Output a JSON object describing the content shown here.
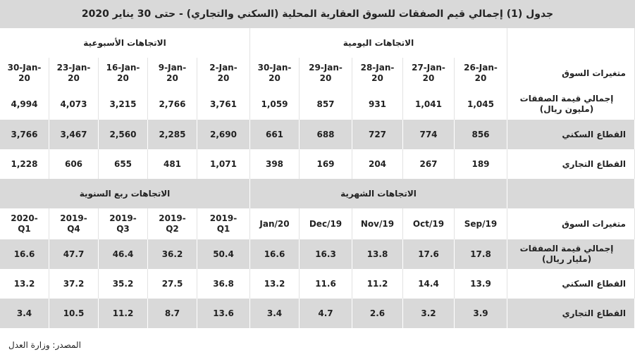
{
  "title": "جدول (1) إجمالي قيم الصفقات للسوق العقارية المحلية (السكني والتجاري) - حتى 30 يناير 2020",
  "tables": [
    {
      "groups": [
        {
          "title": "الاتجاهات اليومية",
          "columns": [
            "26-Jan-20",
            "27-Jan-20",
            "28-Jan-20",
            "29-Jan-20",
            "30-Jan-20"
          ]
        },
        {
          "title": "الاتجاهات الأسبوعية",
          "columns": [
            "2-Jan-20",
            "9-Jan-20",
            "16-Jan-20",
            "23-Jan-20",
            "30-Jan-20"
          ]
        }
      ],
      "row_header": "متغيرات السوق",
      "rows": [
        {
          "label": "إجمالي قيمة الصفقات (مليون ريال)",
          "cells": [
            "1,045",
            "1,041",
            "931",
            "857",
            "1,059",
            "3,761",
            "2,766",
            "3,215",
            "4,073",
            "4,994"
          ]
        },
        {
          "label": "القطاع السكني",
          "cells": [
            "856",
            "774",
            "727",
            "688",
            "661",
            "2,690",
            "2,285",
            "2,560",
            "3,467",
            "3,766"
          ]
        },
        {
          "label": "القطاع التجاري",
          "cells": [
            "189",
            "267",
            "204",
            "169",
            "398",
            "1,071",
            "481",
            "655",
            "606",
            "1,228"
          ]
        }
      ]
    },
    {
      "groups": [
        {
          "title": "الاتجاهات الشهرية",
          "columns": [
            "Sep/19",
            "Oct/19",
            "Nov/19",
            "Dec/19",
            "Jan/20"
          ]
        },
        {
          "title": "الاتجاهات ربع السنوية",
          "columns": [
            "2019-Q1",
            "2019-Q2",
            "2019-Q3",
            "2019-Q4",
            "2020-Q1"
          ]
        }
      ],
      "row_header": "متغيرات السوق",
      "rows": [
        {
          "label": "إجمالي قيمة الصفقات (مليار ريال)",
          "cells": [
            "17.8",
            "17.6",
            "13.8",
            "16.3",
            "16.6",
            "50.4",
            "36.2",
            "46.4",
            "47.7",
            "16.6"
          ]
        },
        {
          "label": "القطاع السكني",
          "cells": [
            "13.9",
            "14.4",
            "11.2",
            "11.6",
            "13.2",
            "36.8",
            "27.5",
            "35.2",
            "37.2",
            "13.2"
          ]
        },
        {
          "label": "القطاع التجاري",
          "cells": [
            "3.9",
            "3.2",
            "2.6",
            "4.7",
            "3.4",
            "13.6",
            "8.7",
            "11.2",
            "10.5",
            "3.4"
          ]
        }
      ]
    }
  ],
  "source": "المصدر: وزارة العدل"
}
